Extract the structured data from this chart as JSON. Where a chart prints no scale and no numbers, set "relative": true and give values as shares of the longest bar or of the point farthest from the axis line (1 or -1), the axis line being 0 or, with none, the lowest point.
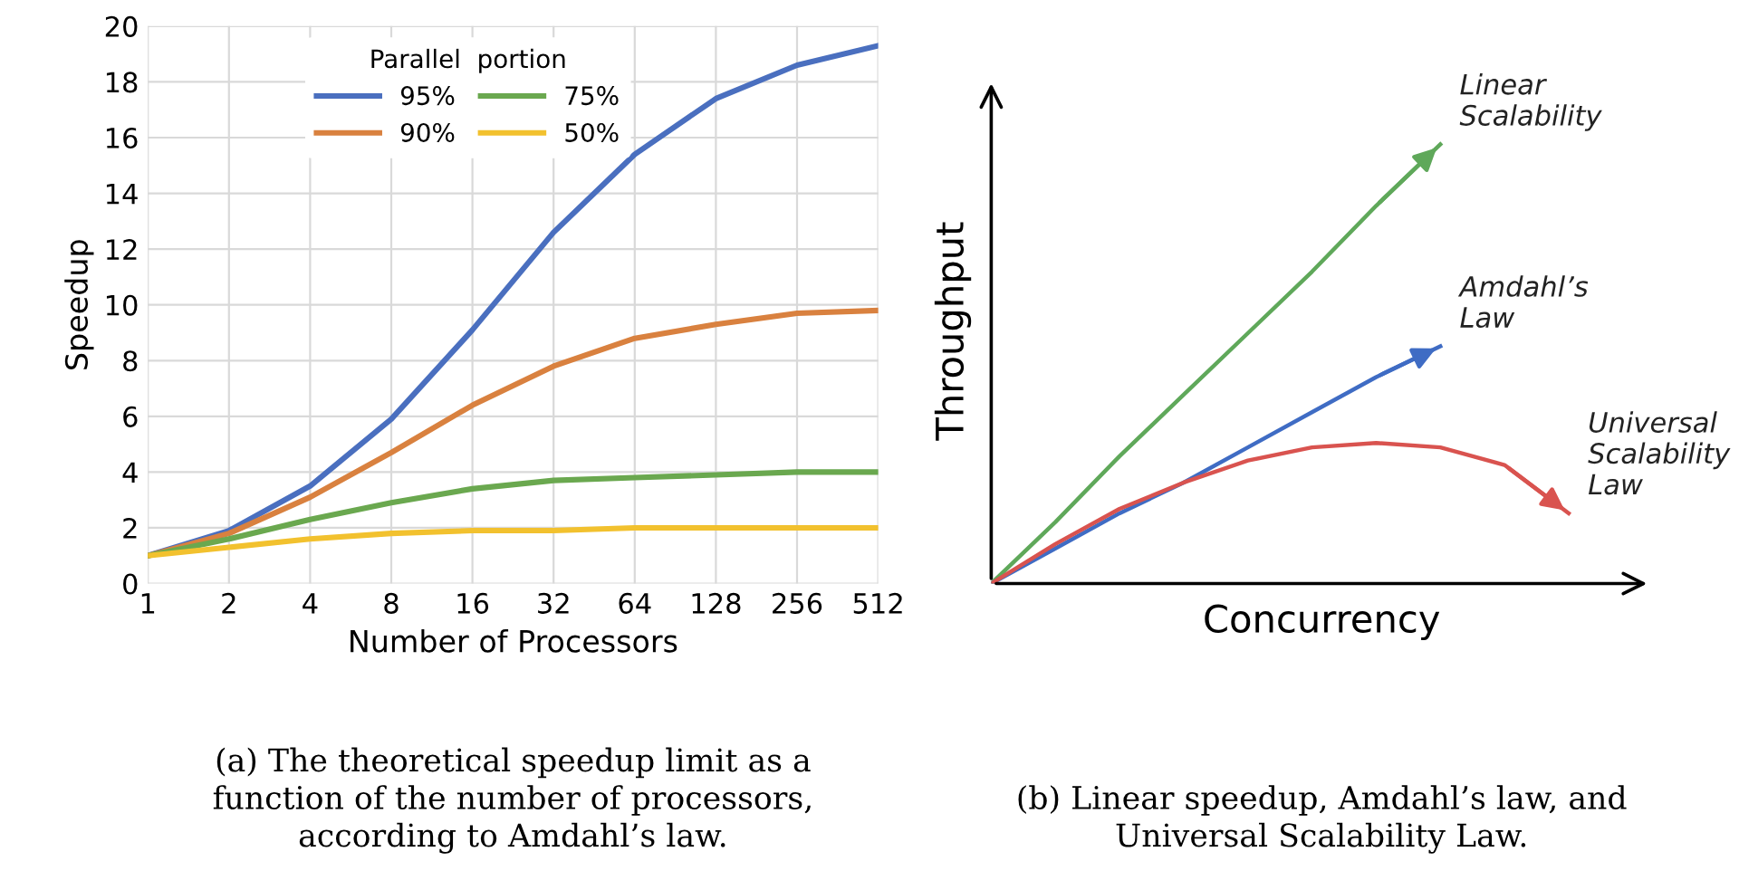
{
  "chart_data": [
    {
      "type": "line",
      "xlabel": "Number of Processors",
      "ylabel": "Speedup",
      "legend_title": "Parallel  portion",
      "legend": "top left",
      "grid": true,
      "categories": [
        "1",
        "2",
        "4",
        "8",
        "16",
        "32",
        "64",
        "128",
        "256",
        "512"
      ],
      "ylim": [
        0,
        20
      ],
      "yticks": [
        0,
        2,
        4,
        6,
        8,
        10,
        12,
        14,
        16,
        18,
        20
      ],
      "series": [
        {
          "name": "95%",
          "color": "#4a6fbf",
          "values": [
            1,
            1.9,
            3.5,
            5.9,
            9.1,
            12.6,
            15.4,
            17.4,
            18.6,
            19.3
          ]
        },
        {
          "name": "90%",
          "color": "#d9813f",
          "values": [
            1,
            1.8,
            3.1,
            4.7,
            6.4,
            7.8,
            8.8,
            9.3,
            9.7,
            9.8
          ]
        },
        {
          "name": "75%",
          "color": "#6aa84f",
          "values": [
            1,
            1.6,
            2.3,
            2.9,
            3.4,
            3.7,
            3.8,
            3.9,
            4.0,
            4.0
          ]
        },
        {
          "name": "50%",
          "color": "#f2c12e",
          "values": [
            1,
            1.3,
            1.6,
            1.8,
            1.9,
            1.9,
            2.0,
            2.0,
            2.0,
            2.0
          ]
        }
      ],
      "annotations": [
        "(a) The theoretical speedup limit as a\nfunction of the number of processors,\naccording to Amdahl’s law."
      ]
    },
    {
      "type": "line",
      "relative": true,
      "xlabel": "Concurrency",
      "ylabel": "Throughput",
      "categories": [
        null,
        null,
        null,
        null,
        null,
        null,
        null,
        null,
        null,
        null
      ],
      "series": [
        {
          "name": "Linear\nScalability",
          "color": "#5fa85a",
          "values": [
            0,
            0.14,
            0.29,
            0.43,
            0.57,
            0.71,
            0.86,
            1.0,
            null,
            null
          ]
        },
        {
          "name": "Amdahl’s\nLaw",
          "color": "#3f6cc4",
          "values": [
            0,
            0.08,
            0.16,
            0.23,
            0.31,
            0.39,
            0.47,
            0.54,
            null,
            null
          ]
        },
        {
          "name": "Universal\nScalability\nLaw",
          "color": "#d9534f",
          "values": [
            0,
            0.09,
            0.17,
            0.23,
            0.28,
            0.31,
            0.32,
            0.31,
            0.27,
            0.16
          ]
        }
      ],
      "annotations": [
        "(b) Linear speedup, Amdahl’s law, and\nUniversal Scalability Law."
      ]
    }
  ]
}
